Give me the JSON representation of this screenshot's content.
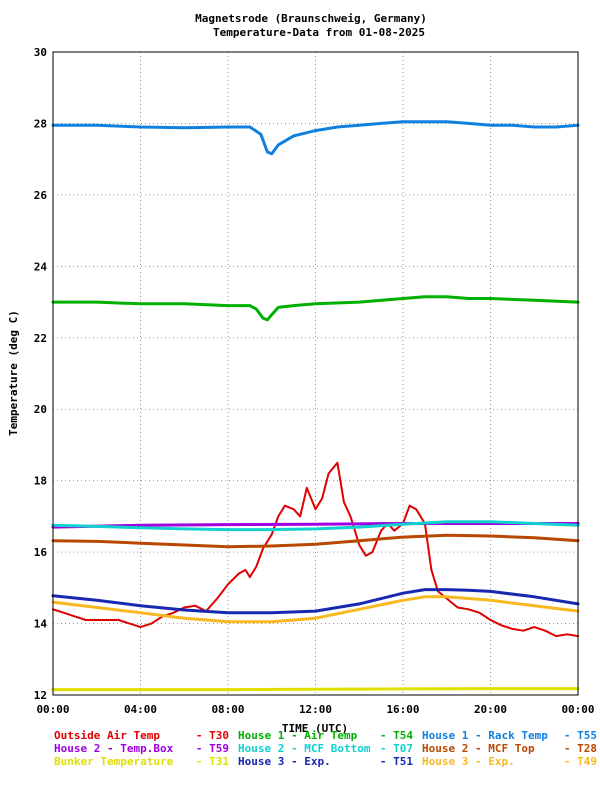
{
  "chart_data": {
    "type": "line",
    "title": "Magnetsrode (Braunschweig, Germany)",
    "subtitle": "Temperature-Data from 01-08-2025",
    "xlabel": "TIME (UTC)",
    "ylabel": "Temperature (deg C)",
    "xlim": [
      0,
      24
    ],
    "ylim": [
      12,
      30
    ],
    "xticks": [
      0,
      4,
      8,
      12,
      16,
      20,
      24
    ],
    "xtick_labels": [
      "00:00",
      "04:00",
      "08:00",
      "12:00",
      "16:00",
      "20:00",
      "00:00"
    ],
    "yticks": [
      12,
      14,
      16,
      18,
      20,
      22,
      24,
      26,
      28,
      30
    ],
    "ytick_labels": [
      "12",
      "14",
      "16",
      "18",
      "20",
      "22",
      "24",
      "26",
      "28",
      "30"
    ],
    "grid": true,
    "legend_position": "bottom",
    "series": [
      {
        "name": "Outside Air Temp",
        "code": "T30",
        "color": "#e00000",
        "x": [
          0,
          0.5,
          1,
          1.5,
          2,
          2.5,
          3,
          3.5,
          4,
          4.5,
          5,
          5.5,
          6,
          6.5,
          7,
          7.5,
          8,
          8.5,
          8.8,
          9,
          9.3,
          9.6,
          10,
          10.3,
          10.6,
          11,
          11.3,
          11.6,
          12,
          12.3,
          12.6,
          13,
          13.3,
          13.6,
          14,
          14.3,
          14.6,
          15,
          15.3,
          15.6,
          16,
          16.3,
          16.6,
          17,
          17.3,
          17.6,
          18,
          18.5,
          19,
          19.5,
          20,
          20.5,
          21,
          21.5,
          22,
          22.5,
          23,
          23.5,
          24
        ],
        "values": [
          14.4,
          14.3,
          14.2,
          14.1,
          14.1,
          14.1,
          14.1,
          14.0,
          13.9,
          14.0,
          14.2,
          14.3,
          14.45,
          14.5,
          14.35,
          14.7,
          15.1,
          15.4,
          15.5,
          15.3,
          15.6,
          16.1,
          16.5,
          17.0,
          17.3,
          17.2,
          17.0,
          17.8,
          17.2,
          17.5,
          18.2,
          18.5,
          17.4,
          17.0,
          16.2,
          15.9,
          16.0,
          16.6,
          16.8,
          16.6,
          16.8,
          17.3,
          17.2,
          16.8,
          15.5,
          14.9,
          14.7,
          14.45,
          14.4,
          14.3,
          14.1,
          13.95,
          13.85,
          13.8,
          13.9,
          13.8,
          13.65,
          13.7,
          13.65
        ]
      },
      {
        "name": "House 1 - Air  Temp",
        "code": "T54",
        "color": "#00b000",
        "x": [
          0,
          2,
          4,
          6,
          8,
          9,
          9.3,
          9.6,
          9.8,
          10,
          10.3,
          11,
          12,
          14,
          16,
          17,
          18,
          19,
          20,
          22,
          24
        ],
        "values": [
          23.0,
          23.0,
          22.95,
          22.95,
          22.9,
          22.9,
          22.8,
          22.55,
          22.5,
          22.65,
          22.85,
          22.9,
          22.95,
          23.0,
          23.1,
          23.15,
          23.15,
          23.1,
          23.1,
          23.05,
          23.0
        ]
      },
      {
        "name": "House 1 - Rack Temp",
        "code": "T55",
        "color": "#1080e0",
        "x": [
          0,
          2,
          4,
          6,
          8,
          9,
          9.5,
          9.8,
          10,
          10.3,
          11,
          12,
          13,
          14,
          15,
          16,
          17,
          18,
          19,
          20,
          21,
          22,
          23,
          24
        ],
        "values": [
          27.95,
          27.95,
          27.9,
          27.88,
          27.9,
          27.9,
          27.7,
          27.2,
          27.15,
          27.4,
          27.65,
          27.8,
          27.9,
          27.95,
          28.0,
          28.05,
          28.05,
          28.05,
          28.0,
          27.95,
          27.95,
          27.9,
          27.9,
          27.95
        ]
      },
      {
        "name": "House 2 - Temp.Box",
        "code": "T59",
        "color": "#a000e0",
        "x": [
          0,
          4,
          8,
          12,
          16,
          20,
          24
        ],
        "values": [
          16.7,
          16.75,
          16.77,
          16.78,
          16.8,
          16.8,
          16.8
        ]
      },
      {
        "name": "House 2 - MCF Bottom",
        "code": "T07",
        "color": "#10d0d0",
        "x": [
          0,
          2,
          4,
          6,
          8,
          10,
          12,
          14,
          16,
          18,
          20,
          22,
          24
        ],
        "values": [
          16.75,
          16.72,
          16.68,
          16.65,
          16.63,
          16.63,
          16.65,
          16.7,
          16.78,
          16.85,
          16.85,
          16.8,
          16.75
        ]
      },
      {
        "name": "House 2 - MCF Top",
        "code": "T28",
        "color": "#b84800",
        "x": [
          0,
          2,
          4,
          6,
          8,
          10,
          12,
          14,
          16,
          18,
          20,
          22,
          24
        ],
        "values": [
          16.32,
          16.3,
          16.25,
          16.2,
          16.15,
          16.17,
          16.22,
          16.32,
          16.42,
          16.47,
          16.45,
          16.4,
          16.32
        ]
      },
      {
        "name": "Bunker Temperature",
        "code": "T31",
        "color": "#e0e000",
        "x": [
          0,
          4,
          8,
          12,
          16,
          20,
          24
        ],
        "values": [
          12.15,
          12.15,
          12.15,
          12.16,
          12.17,
          12.18,
          12.18
        ]
      },
      {
        "name": "House 3 - Exp.",
        "code": "T51",
        "color": "#1828b0",
        "x": [
          0,
          2,
          4,
          6,
          8,
          10,
          12,
          14,
          15,
          16,
          17,
          18,
          19,
          20,
          22,
          24
        ],
        "values": [
          14.78,
          14.65,
          14.5,
          14.38,
          14.3,
          14.3,
          14.35,
          14.55,
          14.7,
          14.85,
          14.95,
          14.95,
          14.93,
          14.9,
          14.75,
          14.55
        ]
      },
      {
        "name": "House 3 - Exp.",
        "code": "T49",
        "color": "#f8b820",
        "x": [
          0,
          2,
          4,
          6,
          8,
          10,
          12,
          14,
          16,
          17,
          18,
          20,
          22,
          24
        ],
        "values": [
          14.6,
          14.45,
          14.3,
          14.15,
          14.05,
          14.05,
          14.15,
          14.4,
          14.65,
          14.75,
          14.75,
          14.65,
          14.5,
          14.35
        ]
      }
    ]
  }
}
